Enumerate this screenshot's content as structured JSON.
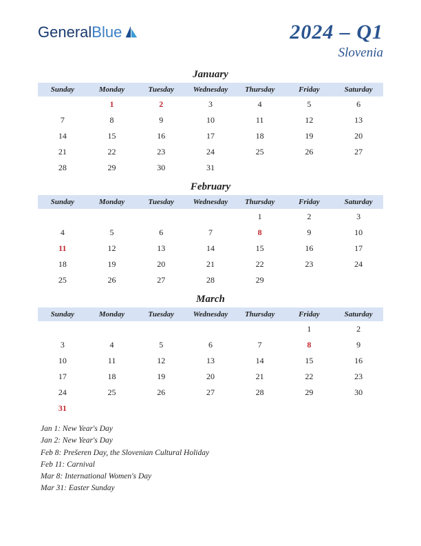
{
  "logo": {
    "part1": "General",
    "part2": "Blue"
  },
  "title": "2024 – Q1",
  "country": "Slovenia",
  "day_headers": [
    "Sunday",
    "Monday",
    "Tuesday",
    "Wednesday",
    "Thursday",
    "Friday",
    "Saturday"
  ],
  "colors": {
    "header_bg": "#d7e3f4",
    "title_color": "#2a5490",
    "holiday_color": "#c1272d",
    "text_color": "#222222"
  },
  "months": [
    {
      "name": "January",
      "weeks": [
        [
          "",
          "1",
          "2",
          "3",
          "4",
          "5",
          "6"
        ],
        [
          "7",
          "8",
          "9",
          "10",
          "11",
          "12",
          "13"
        ],
        [
          "14",
          "15",
          "16",
          "17",
          "18",
          "19",
          "20"
        ],
        [
          "21",
          "22",
          "23",
          "24",
          "25",
          "26",
          "27"
        ],
        [
          "28",
          "29",
          "30",
          "31",
          "",
          "",
          ""
        ]
      ],
      "holidays": [
        "1",
        "2"
      ]
    },
    {
      "name": "February",
      "weeks": [
        [
          "",
          "",
          "",
          "",
          "1",
          "2",
          "3"
        ],
        [
          "4",
          "5",
          "6",
          "7",
          "8",
          "9",
          "10"
        ],
        [
          "11",
          "12",
          "13",
          "14",
          "15",
          "16",
          "17"
        ],
        [
          "18",
          "19",
          "20",
          "21",
          "22",
          "23",
          "24"
        ],
        [
          "25",
          "26",
          "27",
          "28",
          "29",
          "",
          ""
        ]
      ],
      "holidays": [
        "8",
        "11"
      ]
    },
    {
      "name": "March",
      "weeks": [
        [
          "",
          "",
          "",
          "",
          "",
          "1",
          "2"
        ],
        [
          "3",
          "4",
          "5",
          "6",
          "7",
          "8",
          "9"
        ],
        [
          "10",
          "11",
          "12",
          "13",
          "14",
          "15",
          "16"
        ],
        [
          "17",
          "18",
          "19",
          "20",
          "21",
          "22",
          "23"
        ],
        [
          "24",
          "25",
          "26",
          "27",
          "28",
          "29",
          "30"
        ],
        [
          "31",
          "",
          "",
          "",
          "",
          "",
          ""
        ]
      ],
      "holidays": [
        "8",
        "31"
      ]
    }
  ],
  "holiday_list": [
    "Jan 1: New Year's Day",
    "Jan 2: New Year's Day",
    "Feb 8: Prešeren Day, the Slovenian Cultural Holiday",
    "Feb 11: Carnival",
    "Mar 8: International Women's Day",
    "Mar 31: Easter Sunday"
  ]
}
